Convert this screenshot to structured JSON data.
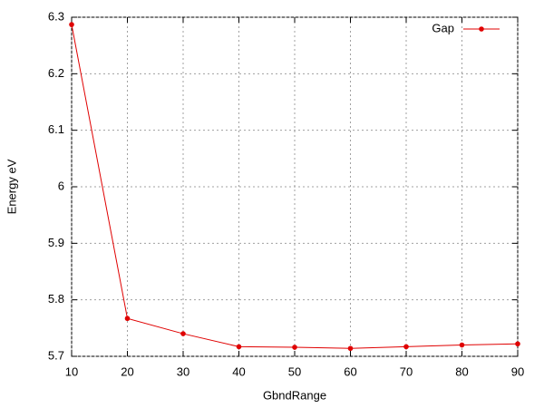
{
  "chart_data": {
    "type": "line",
    "x_label": "GbndRange",
    "y_label": "Energy eV",
    "x": [
      10,
      20,
      30,
      40,
      50,
      60,
      70,
      80,
      90
    ],
    "series": [
      {
        "name": "Gap",
        "color": "#e00000",
        "values": [
          6.287,
          5.767,
          5.74,
          5.717,
          5.716,
          5.714,
          5.717,
          5.72,
          5.722
        ]
      }
    ],
    "xlim": [
      10,
      90
    ],
    "xticks": [
      10,
      20,
      30,
      40,
      50,
      60,
      70,
      80,
      90
    ],
    "ylim": [
      5.7,
      6.3
    ],
    "yticks": [
      5.7,
      5.8,
      5.9,
      6,
      6.1,
      6.2,
      6.3
    ],
    "grid": true,
    "legend": "top-right"
  }
}
